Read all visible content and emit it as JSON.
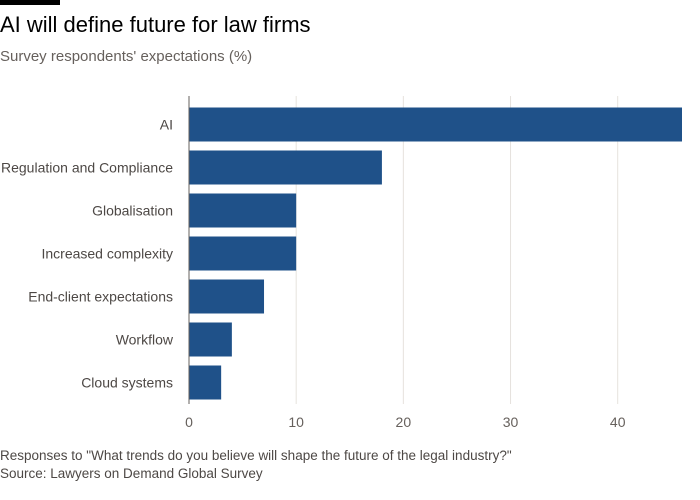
{
  "title": "AI will define future for law firms",
  "subtitle": "Survey respondents' expectations (%)",
  "colors": {
    "bar": "#1f5189",
    "grid": "#e6e2dd",
    "axis": "#66605c"
  },
  "chart_data": {
    "type": "bar",
    "orientation": "horizontal",
    "title": "AI will define future for law firms",
    "subtitle": "Survey respondents' expectations (%)",
    "categories": [
      "AI",
      "Regulation and Compliance",
      "Globalisation",
      "Increased complexity",
      "End-client expectations",
      "Workflow",
      "Cloud systems"
    ],
    "values": [
      46,
      18,
      10,
      10,
      7,
      4,
      3
    ],
    "xlim": [
      0,
      46
    ],
    "xticks": [
      0,
      10,
      20,
      30,
      40
    ],
    "grid": true,
    "xlabel": "",
    "ylabel": ""
  },
  "footnote": "Responses to \"What trends do you believe will shape the future of the legal industry?\"",
  "source": "Source: Lawyers on Demand Global Survey"
}
